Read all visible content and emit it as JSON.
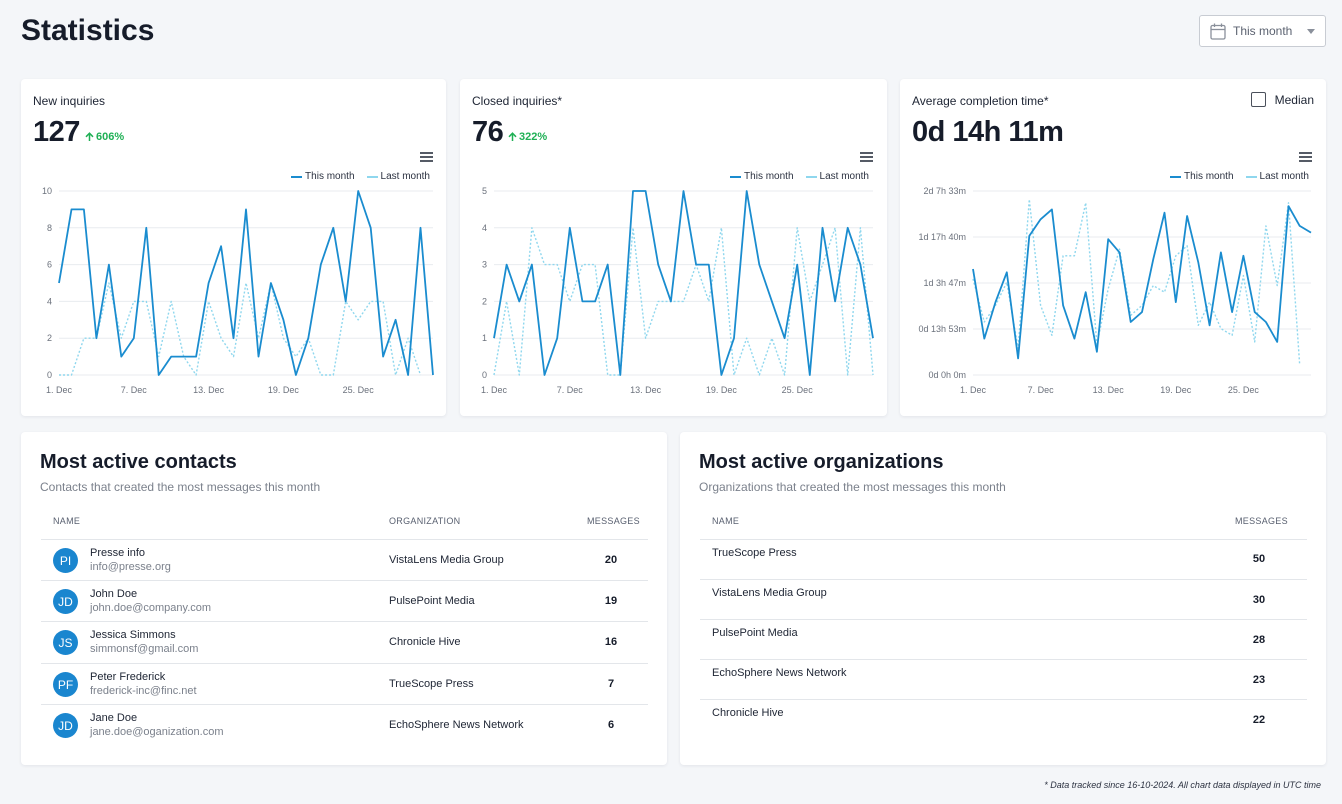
{
  "page": {
    "title": "Statistics"
  },
  "period": {
    "label": "This month",
    "icon": "calendar-icon"
  },
  "colors": {
    "this_month": "#1a8ccf",
    "last_month": "#8fd7ee",
    "positive": "#1fb055",
    "avatar": "#1a86cf"
  },
  "stats": [
    {
      "label": "New inquiries",
      "value": "127",
      "change": "606%",
      "change_direction": "up"
    },
    {
      "label": "Closed inquiries*",
      "value": "76",
      "change": "322%",
      "change_direction": "up"
    },
    {
      "label": "Average completion time*",
      "value": "0d 14h 11m",
      "median_label": "Median",
      "median_checked": false
    }
  ],
  "legend": {
    "this_month": "This month",
    "last_month": "Last month"
  },
  "chart_data": [
    {
      "type": "line",
      "title": "New inquiries",
      "x": [
        "1. Dec",
        "2. Dec",
        "3. Dec",
        "4. Dec",
        "5. Dec",
        "6. Dec",
        "7. Dec",
        "8. Dec",
        "9. Dec",
        "10. Dec",
        "11. Dec",
        "12. Dec",
        "13. Dec",
        "14. Dec",
        "15. Dec",
        "16. Dec",
        "17. Dec",
        "18. Dec",
        "19. Dec",
        "20. Dec",
        "21. Dec",
        "22. Dec",
        "23. Dec",
        "24. Dec",
        "25. Dec",
        "26. Dec",
        "27. Dec",
        "28. Dec",
        "29. Dec",
        "30. Dec",
        "31. Dec"
      ],
      "x_tick_labels": [
        "1. Dec",
        "7. Dec",
        "13. Dec",
        "19. Dec",
        "25. Dec"
      ],
      "y_tick_labels": [
        "0",
        "2",
        "4",
        "6",
        "8",
        "10"
      ],
      "ylim": [
        0,
        10
      ],
      "grid": true,
      "legend_position": "top-right",
      "series": [
        {
          "name": "This month",
          "style": "solid",
          "values": [
            5,
            9,
            9,
            2,
            6,
            1,
            2,
            8,
            0,
            1,
            1,
            1,
            5,
            7,
            2,
            9,
            1,
            5,
            3,
            0,
            2,
            6,
            8,
            4,
            10,
            8,
            1,
            3,
            0,
            8,
            0
          ]
        },
        {
          "name": "Last month",
          "style": "dotted",
          "values": [
            0,
            0,
            2,
            2,
            5,
            2,
            4,
            4,
            1,
            4,
            1,
            0,
            4,
            2,
            1,
            5,
            2,
            5,
            2,
            1,
            2,
            0,
            0,
            4,
            3,
            4,
            4,
            0,
            2,
            0,
            null
          ]
        }
      ]
    },
    {
      "type": "line",
      "title": "Closed inquiries*",
      "x": [
        "1. Dec",
        "2. Dec",
        "3. Dec",
        "4. Dec",
        "5. Dec",
        "6. Dec",
        "7. Dec",
        "8. Dec",
        "9. Dec",
        "10. Dec",
        "11. Dec",
        "12. Dec",
        "13. Dec",
        "14. Dec",
        "15. Dec",
        "16. Dec",
        "17. Dec",
        "18. Dec",
        "19. Dec",
        "20. Dec",
        "21. Dec",
        "22. Dec",
        "23. Dec",
        "24. Dec",
        "25. Dec",
        "26. Dec",
        "27. Dec",
        "28. Dec",
        "29. Dec",
        "30. Dec",
        "31. Dec"
      ],
      "x_tick_labels": [
        "1. Dec",
        "7. Dec",
        "13. Dec",
        "19. Dec",
        "25. Dec"
      ],
      "y_tick_labels": [
        "0",
        "1",
        "2",
        "3",
        "4",
        "5"
      ],
      "ylim": [
        0,
        5
      ],
      "grid": true,
      "legend_position": "top-right",
      "series": [
        {
          "name": "This month",
          "style": "solid",
          "values": [
            1,
            3,
            2,
            3,
            0,
            1,
            4,
            2,
            2,
            3,
            0,
            5,
            5,
            3,
            2,
            5,
            3,
            3,
            0,
            1,
            5,
            3,
            2,
            1,
            3,
            0,
            4,
            2,
            4,
            3,
            1
          ]
        },
        {
          "name": "Last month",
          "style": "dotted",
          "values": [
            0,
            2,
            0,
            4,
            3,
            3,
            2,
            3,
            3,
            0,
            0,
            4,
            1,
            2,
            2,
            2,
            3,
            2,
            4,
            0,
            1,
            0,
            1,
            0,
            4,
            2,
            3,
            4,
            0,
            4,
            0
          ]
        }
      ]
    },
    {
      "type": "line",
      "title": "Average completion time*",
      "x": [
        "1. Dec",
        "2. Dec",
        "3. Dec",
        "4. Dec",
        "5. Dec",
        "6. Dec",
        "7. Dec",
        "8. Dec",
        "9. Dec",
        "10. Dec",
        "11. Dec",
        "12. Dec",
        "13. Dec",
        "14. Dec",
        "15. Dec",
        "16. Dec",
        "17. Dec",
        "18. Dec",
        "19. Dec",
        "20. Dec",
        "21. Dec",
        "22. Dec",
        "23. Dec",
        "24. Dec",
        "25. Dec",
        "26. Dec",
        "27. Dec",
        "28. Dec",
        "29. Dec",
        "30. Dec",
        "31. Dec"
      ],
      "x_tick_labels": [
        "1. Dec",
        "7. Dec",
        "13. Dec",
        "19. Dec",
        "25. Dec"
      ],
      "y_tick_labels": [
        "0d 0h 0m",
        "0d 13h 53m",
        "1d 3h 47m",
        "1d 17h 40m",
        "2d 7h 33m"
      ],
      "y_unit": "hours",
      "ylim": [
        0,
        55.55
      ],
      "grid": true,
      "legend_position": "top-right",
      "series": [
        {
          "name": "This month",
          "style": "solid",
          "values": [
            32,
            11,
            22,
            31,
            5,
            42,
            47,
            50,
            21,
            11,
            25,
            7,
            41,
            37,
            16,
            19,
            35,
            49,
            22,
            48,
            34,
            15,
            37,
            19,
            36,
            19,
            16,
            10,
            51,
            45,
            43
          ]
        },
        {
          "name": "Last month",
          "style": "dotted",
          "values": [
            29,
            16,
            21,
            28,
            8,
            53,
            21,
            12,
            36,
            36,
            52,
            9,
            26,
            38,
            18,
            21,
            27,
            25,
            36,
            39,
            15,
            22,
            14,
            12,
            30,
            10,
            45,
            27,
            52,
            3,
            null
          ]
        }
      ]
    }
  ],
  "contacts": {
    "title": "Most active contacts",
    "subtitle": "Contacts that created the most messages this month",
    "headers": {
      "name": "NAME",
      "organization": "ORGANIZATION",
      "messages": "MESSAGES"
    },
    "rows": [
      {
        "initials": "PI",
        "name": "Presse info",
        "email": "info@presse.org",
        "organization": "VistaLens Media Group",
        "messages": "20"
      },
      {
        "initials": "JD",
        "name": "John Doe",
        "email": "john.doe@company.com",
        "organization": "PulsePoint Media",
        "messages": "19"
      },
      {
        "initials": "JS",
        "name": "Jessica Simmons",
        "email": "simmonsf@gmail.com",
        "organization": "Chronicle Hive",
        "messages": "16"
      },
      {
        "initials": "PF",
        "name": "Peter Frederick",
        "email": "frederick-inc@finc.net",
        "organization": "TrueScope Press",
        "messages": "7"
      },
      {
        "initials": "JD",
        "name": "Jane Doe",
        "email": "jane.doe@oganization.com",
        "organization": "EchoSphere News Network",
        "messages": "6"
      }
    ]
  },
  "organizations": {
    "title": "Most active organizations",
    "subtitle": "Organizations that created the most messages this month",
    "headers": {
      "name": "NAME",
      "messages": "MESSAGES"
    },
    "rows": [
      {
        "name": "TrueScope Press",
        "messages": "50"
      },
      {
        "name": "VistaLens Media Group",
        "messages": "30"
      },
      {
        "name": "PulsePoint Media",
        "messages": "28"
      },
      {
        "name": "EchoSphere News Network",
        "messages": "23"
      },
      {
        "name": "Chronicle Hive",
        "messages": "22"
      }
    ]
  },
  "footnote": "* Data tracked since 16-10-2024. All chart data displayed in UTC time"
}
